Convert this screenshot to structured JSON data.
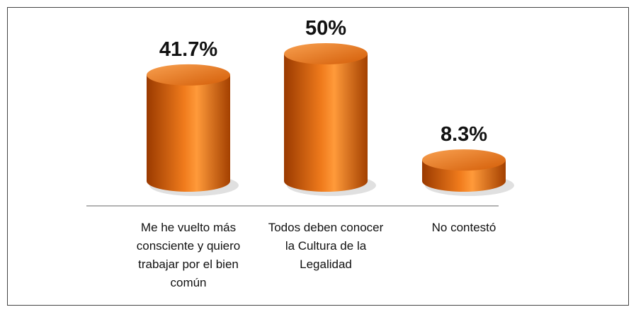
{
  "chart_data": {
    "type": "bar",
    "categories": [
      "Me he vuelto más consciente y quiero trabajar por el bien común",
      "Todos deben conocer la Cultura de la Legalidad",
      "No contestó"
    ],
    "values": [
      41.7,
      50,
      8.3
    ],
    "value_labels": [
      "41.7%",
      "50%",
      "8.3%"
    ],
    "color": "#f07b1c"
  }
}
